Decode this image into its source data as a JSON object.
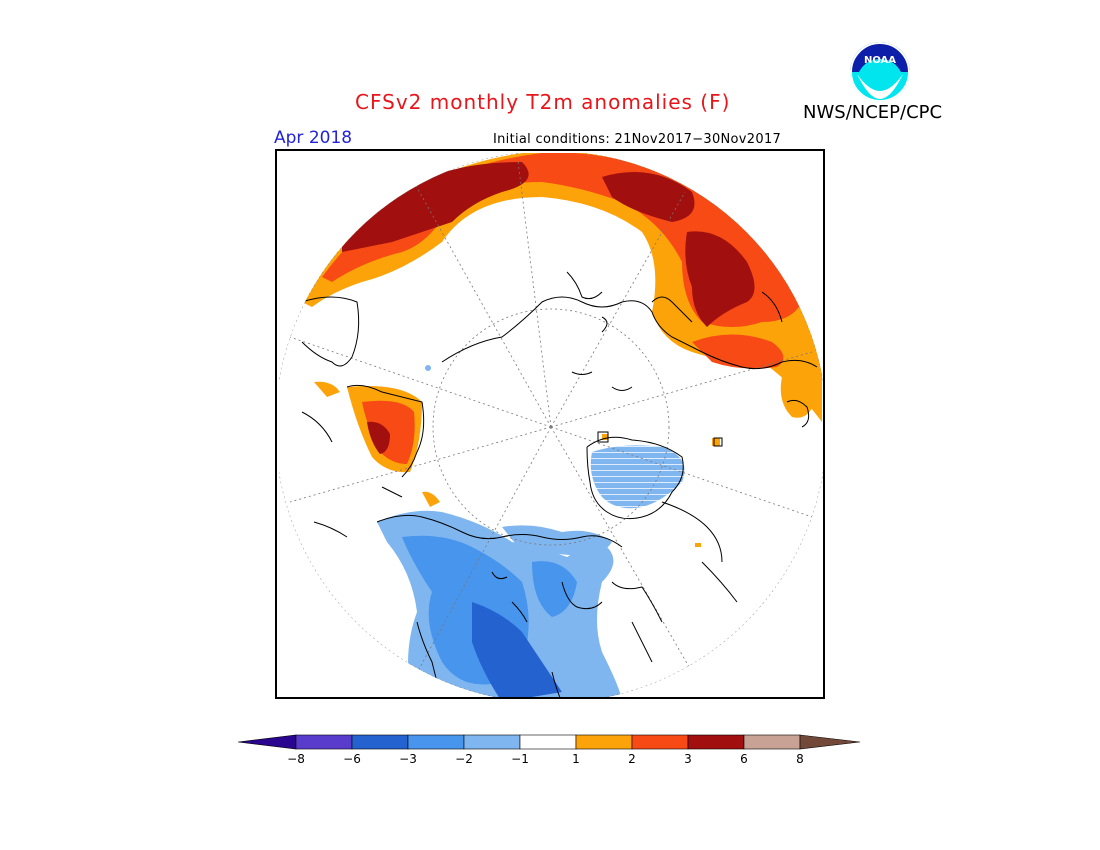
{
  "title": "CFSv2 monthly T2m anomalies (F)",
  "month_label": "Apr 2018",
  "initial_conditions": "Initial conditions: 21Nov2017−30Nov2017",
  "agency": "NWS/NCEP/CPC",
  "logo_text": "NOAA",
  "colors": {
    "title": "#e8151b",
    "month": "#2323d6",
    "below_8": "#2a058f",
    "n8_n6": "#5a3ccc",
    "n6_n3": "#2362cf",
    "n3_n2": "#4795ec",
    "n2_n1": "#7fb6f0",
    "neutral": "#ffffff",
    "p1_p2": "#fda30a",
    "p2_p3": "#f74a14",
    "p3_p6": "#a10f0f",
    "p6_p8": "#c8a294",
    "above_8": "#724838"
  },
  "colorbar": {
    "tick_labels": [
      "−8",
      "−6",
      "−3",
      "−2",
      "−1",
      "1",
      "2",
      "3",
      "6",
      "8"
    ]
  },
  "map": {
    "projection": "north-polar-stereographic",
    "regions": [
      {
        "name": "eurasia-north-coast",
        "category": "p1_p2"
      },
      {
        "name": "eurasia-north-coast-core",
        "category": "p2_p3"
      },
      {
        "name": "eurasia-north-coast-max",
        "category": "p3_p6"
      },
      {
        "name": "west-russia-scandinavia",
        "category": "p3_p6"
      },
      {
        "name": "east-europe",
        "category": "p2_p3"
      },
      {
        "name": "alaska",
        "category": "p2_p3"
      },
      {
        "name": "alaska-core",
        "category": "p3_p6"
      },
      {
        "name": "canada-us",
        "category": "n2_n1"
      },
      {
        "name": "canada-us-core",
        "category": "n3_n2"
      },
      {
        "name": "great-plains-core",
        "category": "n6_n3"
      },
      {
        "name": "canada-arctic-islands",
        "category": "n2_n1"
      },
      {
        "name": "greenland",
        "category": "n2_n1"
      }
    ]
  }
}
